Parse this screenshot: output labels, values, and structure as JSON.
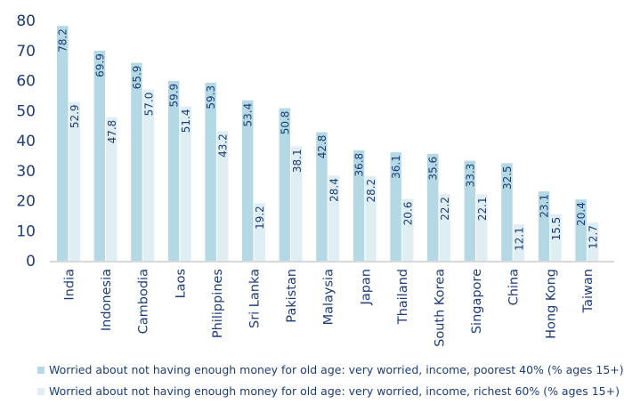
{
  "chart_data": {
    "type": "bar",
    "categories": [
      "India",
      "Indonesia",
      "Cambodia",
      "Laos",
      "Philippines",
      "Sri Lanka",
      "Pakistan",
      "Malaysia",
      "Japan",
      "Thailand",
      "South Korea",
      "Singapore",
      "China",
      "Hong Kong",
      "Taiwan"
    ],
    "series": [
      {
        "name": "Worried about not having enough money for old age: very worried, income, poorest 40% (% ages 15+)",
        "color": "#b5d9e4",
        "values": [
          78.2,
          69.9,
          65.9,
          59.9,
          59.3,
          53.4,
          50.8,
          42.8,
          36.8,
          36.1,
          35.6,
          33.3,
          32.5,
          23.1,
          20.4
        ]
      },
      {
        "name": "Worried about not having enough money for old age: very worried, income, richest 60% (% ages 15+)",
        "color": "#dfeef3",
        "values": [
          52.9,
          47.8,
          57.0,
          51.4,
          43.2,
          19.2,
          38.1,
          28.4,
          28.2,
          20.6,
          22.2,
          22.1,
          12.1,
          15.5,
          12.7
        ]
      }
    ],
    "yticks": [
      "0",
      "10",
      "20",
      "30",
      "40",
      "50",
      "60",
      "70",
      "80"
    ],
    "ylim": [
      0,
      80
    ],
    "grid": false,
    "legend_position": "bottom",
    "title": "",
    "xlabel": "",
    "ylabel": ""
  }
}
